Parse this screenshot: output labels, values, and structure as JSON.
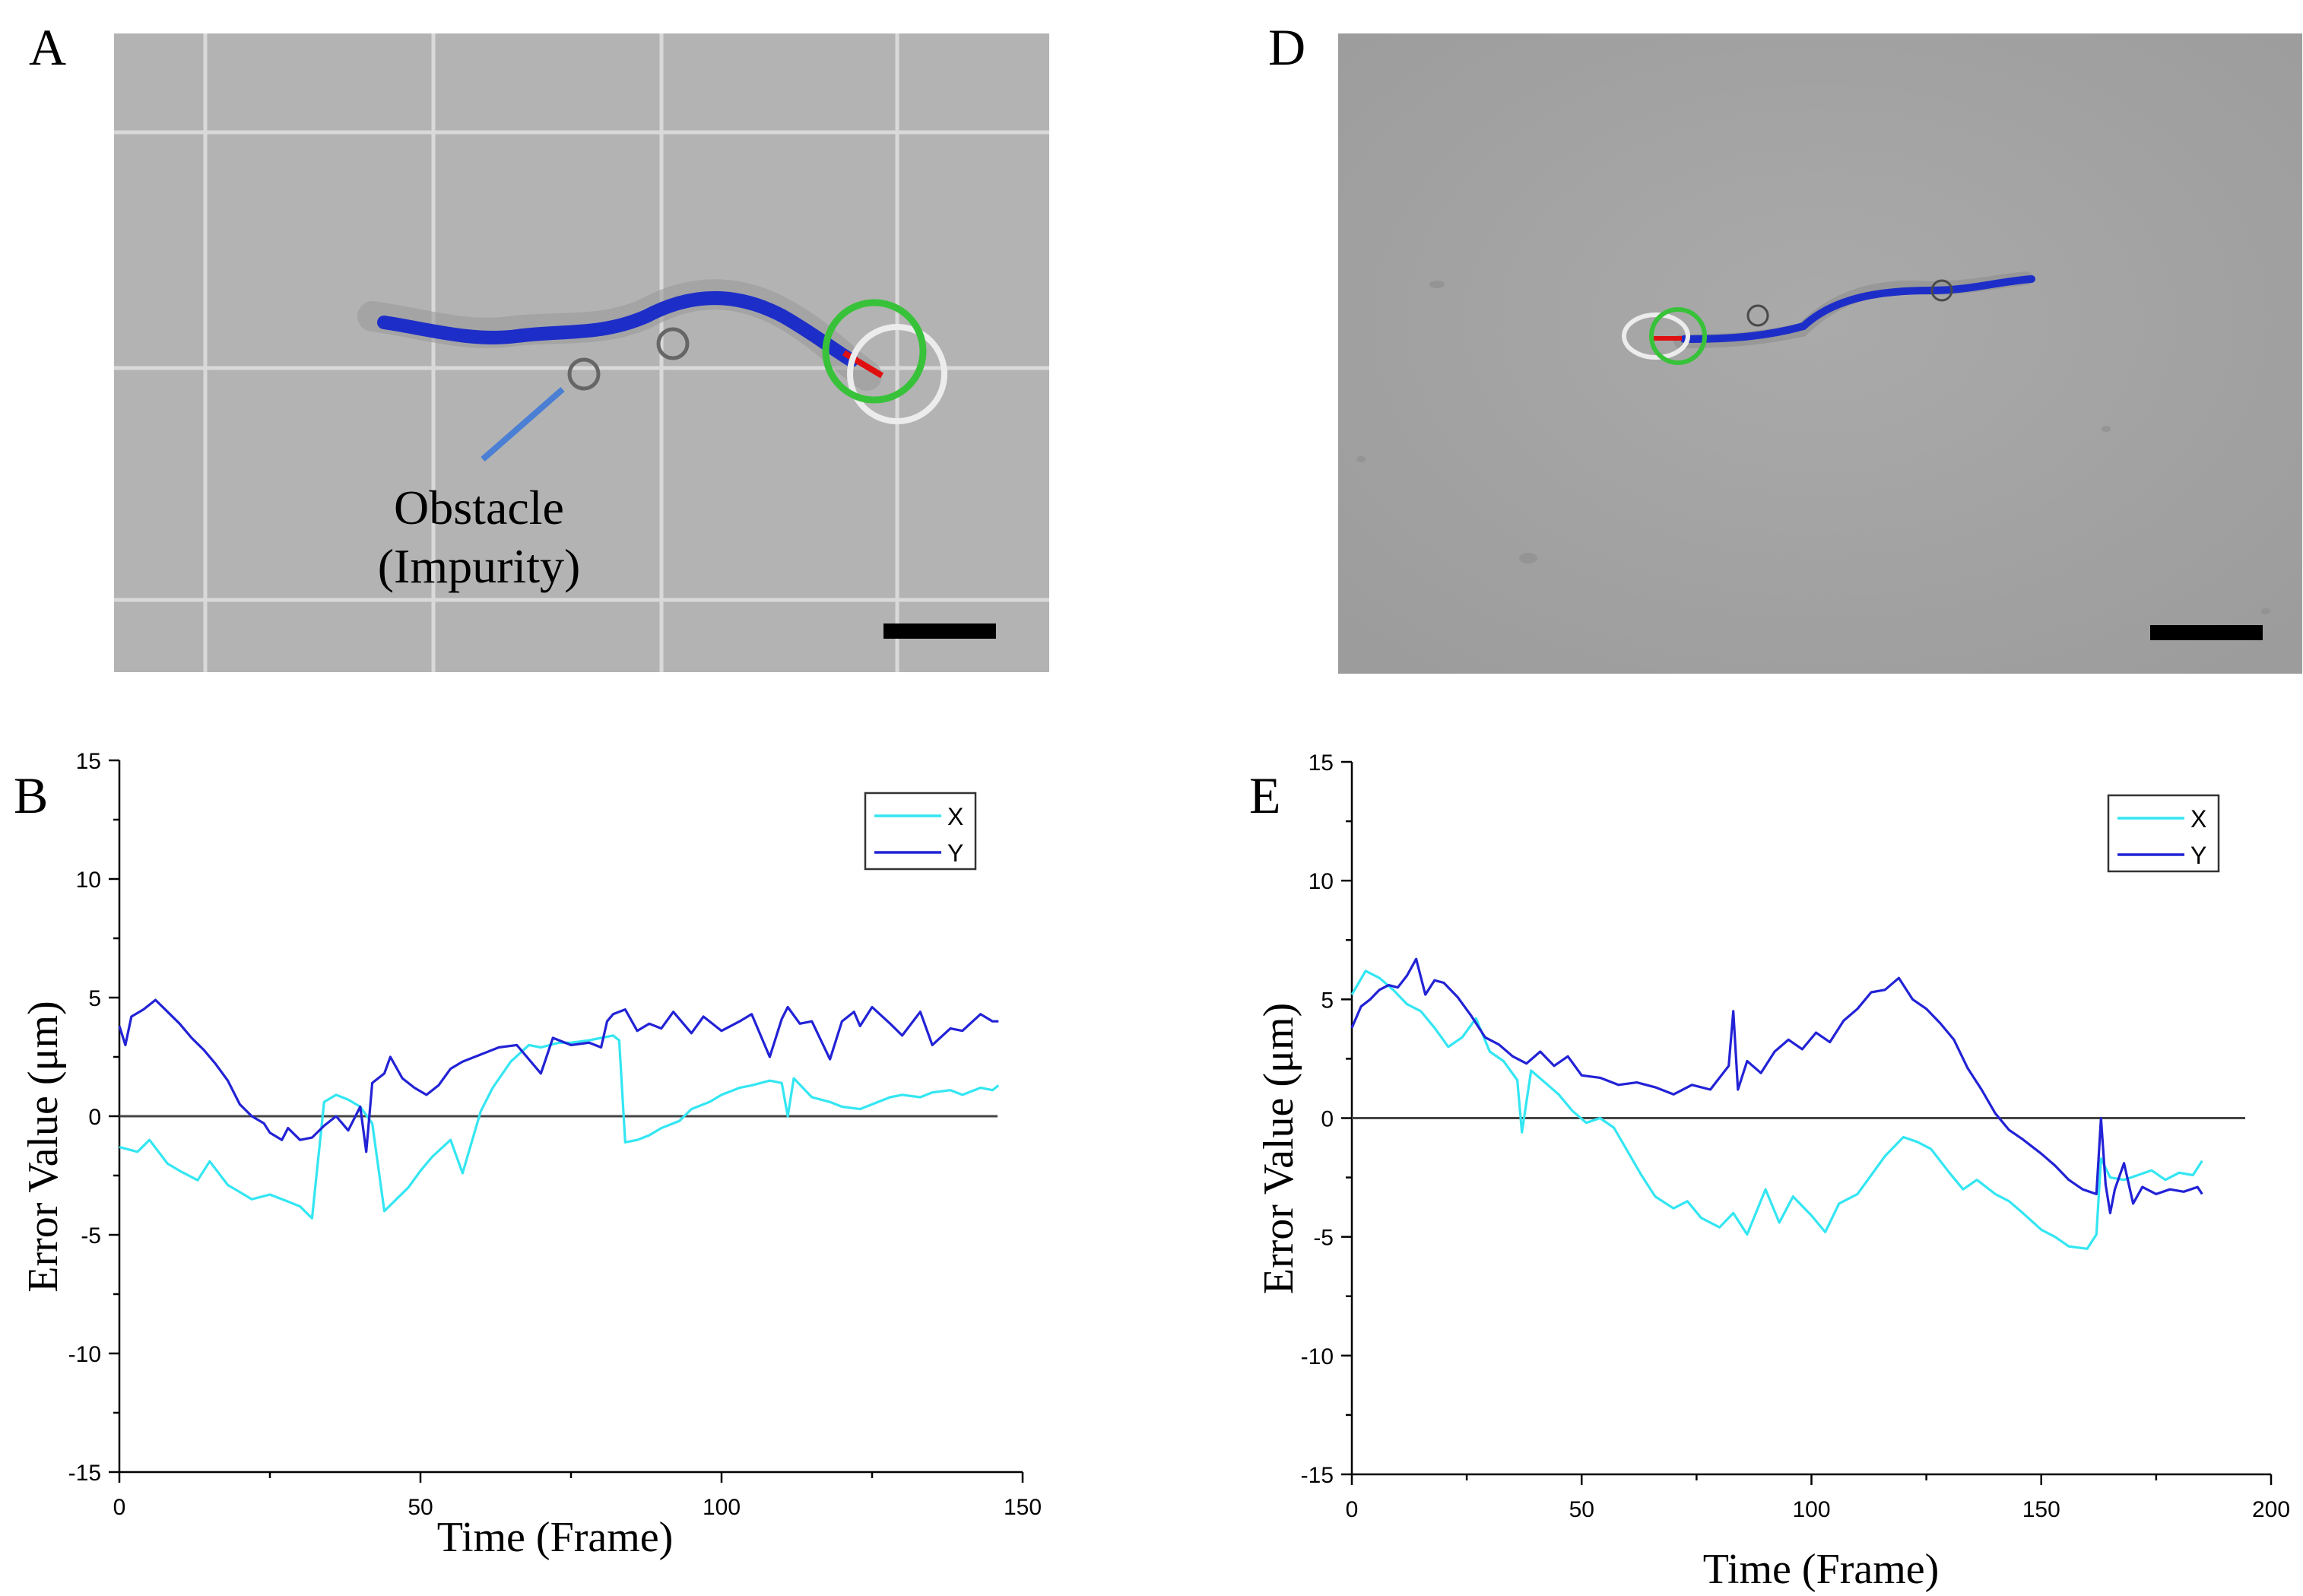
{
  "panels": {
    "a": {
      "letter": "A",
      "annotation_line1": "Obstacle",
      "annotation_line2": "(Impurity)"
    },
    "b": {
      "letter": "B"
    },
    "d": {
      "letter": "D"
    },
    "e": {
      "letter": "E"
    }
  },
  "colors": {
    "x_series": "#33e6f2",
    "y_series": "#2222d6",
    "trajectory": "#1d2ec8",
    "target_circle": "#38c23a",
    "heading": "#e01010",
    "annotation_line": "#4a7fd4"
  },
  "chart_data": [
    {
      "panel": "B",
      "type": "line",
      "xlabel": "Time (Frame)",
      "ylabel": "Error Value (μm)",
      "xlim": [
        0,
        150
      ],
      "ylim": [
        -15,
        15
      ],
      "xticks": [
        0,
        50,
        100,
        150
      ],
      "yticks": [
        -15,
        -10,
        -5,
        0,
        5,
        10,
        15
      ],
      "legend": "top-right",
      "baseline": 0,
      "series": [
        {
          "name": "X",
          "x": [
            0,
            3,
            5,
            8,
            10,
            13,
            15,
            18,
            20,
            22,
            25,
            28,
            30,
            32,
            34,
            36,
            38,
            40,
            42,
            44,
            46,
            48,
            50,
            52,
            55,
            57,
            60,
            62,
            65,
            68,
            70,
            73,
            75,
            78,
            80,
            82,
            83,
            84,
            86,
            88,
            90,
            93,
            95,
            98,
            100,
            103,
            105,
            108,
            110,
            111,
            112,
            115,
            118,
            120,
            123,
            125,
            128,
            130,
            133,
            135,
            138,
            140,
            143,
            145,
            146
          ],
          "y": [
            -1.3,
            -1.5,
            -1.0,
            -2.0,
            -2.3,
            -2.7,
            -1.9,
            -2.9,
            -3.2,
            -3.5,
            -3.3,
            -3.6,
            -3.8,
            -4.3,
            0.6,
            0.9,
            0.7,
            0.4,
            -0.3,
            -4.0,
            -3.5,
            -3.0,
            -2.3,
            -1.7,
            -1.0,
            -2.4,
            0.2,
            1.2,
            2.3,
            3.0,
            2.9,
            3.1,
            3.1,
            3.2,
            3.3,
            3.4,
            3.2,
            -1.1,
            -1.0,
            -0.8,
            -0.5,
            -0.2,
            0.3,
            0.6,
            0.9,
            1.2,
            1.3,
            1.5,
            1.4,
            0.0,
            1.6,
            0.8,
            0.6,
            0.4,
            0.3,
            0.5,
            0.8,
            0.9,
            0.8,
            1.0,
            1.1,
            0.9,
            1.2,
            1.1,
            1.3
          ]
        },
        {
          "name": "Y",
          "x": [
            0,
            1,
            2,
            4,
            6,
            8,
            10,
            12,
            14,
            16,
            18,
            20,
            22,
            24,
            25,
            27,
            28,
            30,
            32,
            34,
            36,
            38,
            40,
            41,
            42,
            44,
            45,
            47,
            49,
            51,
            53,
            55,
            57,
            60,
            63,
            66,
            70,
            72,
            75,
            78,
            80,
            81,
            82,
            84,
            86,
            88,
            90,
            92,
            95,
            97,
            100,
            103,
            105,
            108,
            110,
            111,
            113,
            115,
            118,
            120,
            122,
            123,
            125,
            128,
            130,
            133,
            135,
            138,
            140,
            143,
            145,
            146
          ],
          "y": [
            3.8,
            3.0,
            4.2,
            4.5,
            4.9,
            4.4,
            3.9,
            3.3,
            2.8,
            2.2,
            1.5,
            0.5,
            0.0,
            -0.3,
            -0.7,
            -1.0,
            -0.5,
            -1.0,
            -0.9,
            -0.4,
            0.0,
            -0.6,
            0.4,
            -1.5,
            1.4,
            1.8,
            2.5,
            1.6,
            1.2,
            0.9,
            1.3,
            2.0,
            2.3,
            2.6,
            2.9,
            3.0,
            1.8,
            3.3,
            3.0,
            3.1,
            2.9,
            4.0,
            4.3,
            4.5,
            3.6,
            3.9,
            3.7,
            4.4,
            3.5,
            4.2,
            3.6,
            4.0,
            4.3,
            2.5,
            4.1,
            4.6,
            3.9,
            4.0,
            2.4,
            4.0,
            4.4,
            3.8,
            4.6,
            3.9,
            3.4,
            4.4,
            3.0,
            3.7,
            3.6,
            4.3,
            4.0,
            4.0
          ]
        }
      ]
    },
    {
      "panel": "E",
      "type": "line",
      "xlabel": "Time (Frame)",
      "ylabel": "Error Value (μm)",
      "xlim": [
        0,
        200
      ],
      "ylim": [
        -15,
        15
      ],
      "xticks": [
        0,
        50,
        100,
        150,
        200
      ],
      "yticks": [
        -15,
        -10,
        -5,
        0,
        5,
        10,
        15
      ],
      "legend": "top-right",
      "baseline": 0,
      "series": [
        {
          "name": "X",
          "x": [
            0,
            3,
            6,
            9,
            12,
            15,
            18,
            21,
            24,
            27,
            30,
            33,
            36,
            37,
            39,
            42,
            45,
            48,
            51,
            54,
            57,
            60,
            63,
            66,
            70,
            73,
            76,
            80,
            83,
            86,
            90,
            93,
            96,
            100,
            103,
            106,
            110,
            113,
            116,
            120,
            123,
            126,
            130,
            133,
            136,
            140,
            143,
            146,
            150,
            153,
            156,
            160,
            162,
            163,
            165,
            168,
            171,
            174,
            177,
            180,
            183,
            185
          ],
          "y": [
            5.2,
            6.2,
            5.9,
            5.4,
            4.8,
            4.5,
            3.8,
            3.0,
            3.4,
            4.2,
            2.8,
            2.4,
            1.6,
            -0.6,
            2.0,
            1.5,
            1.0,
            0.3,
            -0.2,
            0.0,
            -0.4,
            -1.4,
            -2.4,
            -3.3,
            -3.8,
            -3.5,
            -4.2,
            -4.6,
            -4.0,
            -4.9,
            -3.0,
            -4.4,
            -3.3,
            -4.1,
            -4.8,
            -3.6,
            -3.2,
            -2.4,
            -1.6,
            -0.8,
            -1.0,
            -1.3,
            -2.3,
            -3.0,
            -2.6,
            -3.2,
            -3.5,
            -4.0,
            -4.7,
            -5.0,
            -5.4,
            -5.5,
            -4.9,
            -1.7,
            -2.5,
            -2.6,
            -2.4,
            -2.2,
            -2.6,
            -2.3,
            -2.4,
            -1.8
          ]
        },
        {
          "name": "Y",
          "x": [
            0,
            2,
            4,
            6,
            8,
            10,
            12,
            14,
            16,
            18,
            20,
            23,
            26,
            29,
            32,
            35,
            38,
            41,
            44,
            47,
            50,
            54,
            58,
            62,
            66,
            70,
            74,
            78,
            80,
            82,
            83,
            84,
            86,
            89,
            92,
            95,
            98,
            101,
            104,
            107,
            110,
            113,
            116,
            119,
            122,
            125,
            128,
            131,
            134,
            137,
            140,
            143,
            146,
            150,
            153,
            156,
            159,
            162,
            163,
            164,
            165,
            166,
            168,
            170,
            172,
            175,
            178,
            181,
            184,
            185
          ],
          "y": [
            3.8,
            4.7,
            5.0,
            5.4,
            5.6,
            5.5,
            6.0,
            6.7,
            5.2,
            5.8,
            5.7,
            5.1,
            4.3,
            3.4,
            3.1,
            2.6,
            2.3,
            2.8,
            2.2,
            2.6,
            1.8,
            1.7,
            1.4,
            1.5,
            1.3,
            1.0,
            1.4,
            1.2,
            1.7,
            2.2,
            4.5,
            1.2,
            2.4,
            1.9,
            2.8,
            3.3,
            2.9,
            3.6,
            3.2,
            4.1,
            4.6,
            5.3,
            5.4,
            5.9,
            5.0,
            4.6,
            4.0,
            3.3,
            2.1,
            1.2,
            0.2,
            -0.5,
            -0.9,
            -1.5,
            -2.0,
            -2.6,
            -3.0,
            -3.2,
            0.0,
            -2.8,
            -4.0,
            -3.0,
            -1.9,
            -3.6,
            -2.9,
            -3.2,
            -3.0,
            -3.1,
            -2.9,
            -3.2
          ]
        }
      ]
    }
  ]
}
